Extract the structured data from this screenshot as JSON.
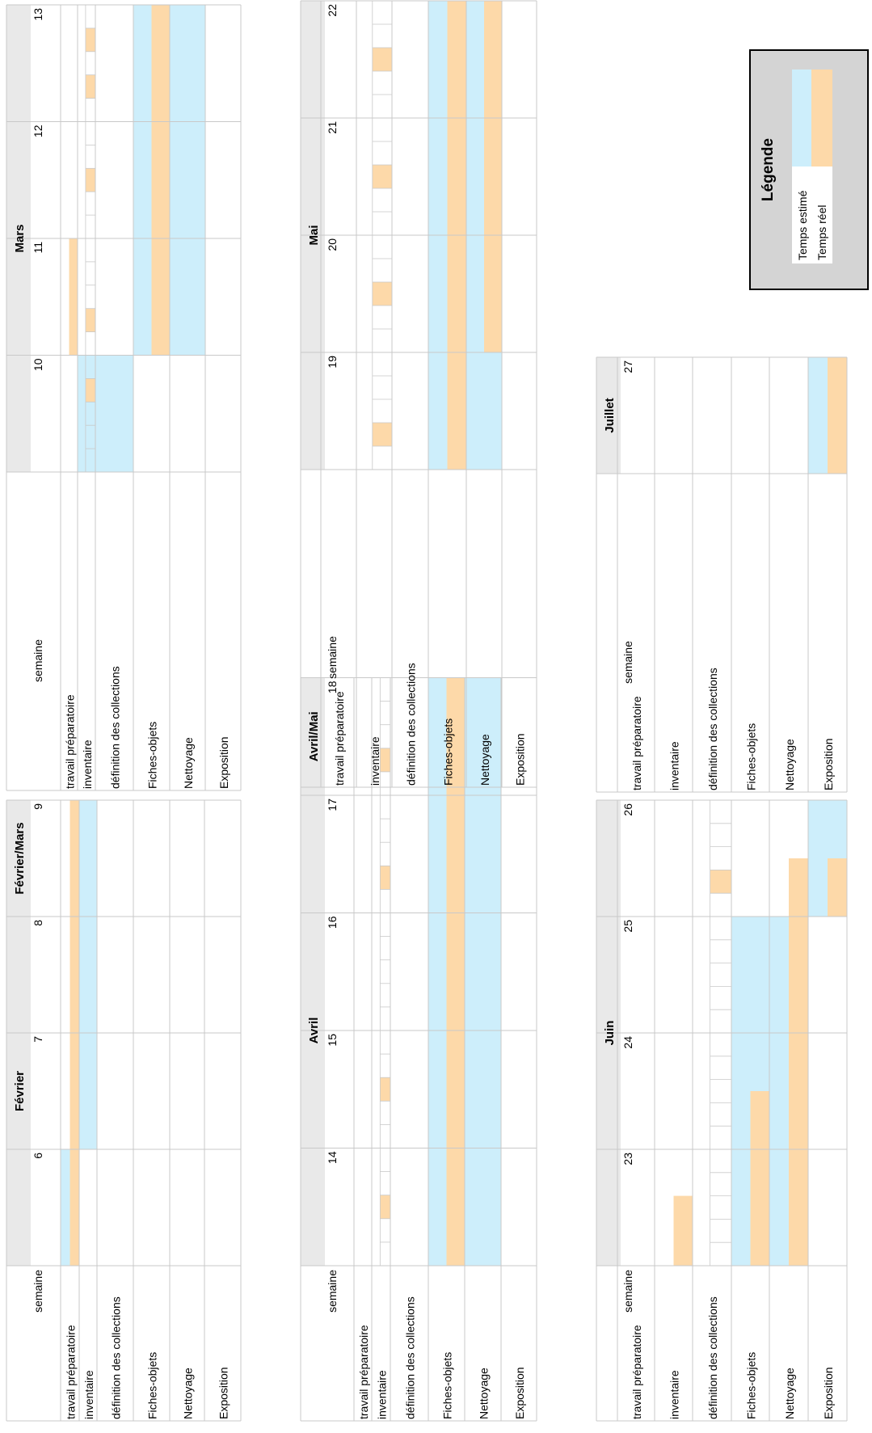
{
  "colors": {
    "estimated": "#cdeefb",
    "real": "#fdd9a9",
    "header_bg": "#e9e9e9",
    "legend_bg": "#d4d4d4",
    "grid": "#c9c9c9"
  },
  "legend": {
    "title": "Légende",
    "estimated_label": "Temps estimé",
    "real_label": "Temps réel"
  },
  "chart_data": [
    {
      "type": "gantt",
      "month_labels": [
        "Février",
        "Février/Mars"
      ],
      "row_header": "semaine",
      "rows": [
        "travail préparatoire",
        "inventaire",
        "définition des collections",
        "Fiches-objets",
        "Nettoyage",
        "Exposition"
      ],
      "weeks": [
        6,
        7,
        8,
        9
      ],
      "estimated": [
        {
          "row": "travail préparatoire",
          "start": 6,
          "end": 6
        },
        {
          "row": "inventaire",
          "start": 7,
          "end": 9
        }
      ],
      "real": [
        {
          "row": "travail préparatoire",
          "start": 6,
          "end": 9
        }
      ]
    },
    {
      "type": "gantt",
      "month_labels": [
        "Mars"
      ],
      "row_header": "semaine",
      "rows": [
        "travail préparatoire",
        "inventaire",
        "définition des collections",
        "Fiches-objets",
        "Nettoyage",
        "Exposition"
      ],
      "weeks": [
        10,
        11,
        12,
        13
      ],
      "estimated": [
        {
          "row": "inventaire",
          "start": 10,
          "end": 10
        },
        {
          "row": "définition des collections",
          "start": 10,
          "end": 10
        },
        {
          "row": "Fiches-objets",
          "start": 11,
          "end": 13
        },
        {
          "row": "Nettoyage",
          "start": 11,
          "end": 13
        }
      ],
      "real": [
        {
          "row": "travail préparatoire",
          "start": 11,
          "end": 11
        },
        {
          "row": "inventaire",
          "day_blocks": [
            [
              10,
              4
            ],
            [
              11,
              2
            ],
            [
              12,
              3
            ],
            [
              13,
              2
            ],
            [
              13,
              4
            ]
          ]
        },
        {
          "row": "Fiches-objets",
          "start": 11,
          "end": 13
        }
      ]
    },
    {
      "type": "gantt",
      "month_labels": [
        "Avril",
        "Avril/Mai"
      ],
      "row_header": "semaine",
      "rows": [
        "travail préparatoire",
        "inventaire",
        "définition des collections",
        "Fiches-objets",
        "Nettoyage",
        "Exposition"
      ],
      "weeks": [
        14,
        15,
        16,
        17,
        18
      ],
      "estimated": [
        {
          "row": "Fiches-objets",
          "start": 14,
          "end": 18
        },
        {
          "row": "Nettoyage",
          "start": 14,
          "end": 18
        }
      ],
      "real": [
        {
          "row": "inventaire",
          "day_blocks": [
            [
              14,
              3
            ],
            [
              15,
              3
            ],
            [
              17,
              2
            ],
            [
              18,
              2
            ]
          ]
        },
        {
          "row": "Fiches-objets",
          "start": 14,
          "end": 18
        }
      ]
    },
    {
      "type": "gantt",
      "month_labels": [
        "Mai"
      ],
      "row_header": "semaine",
      "rows": [
        "travail préparatoire",
        "inventaire",
        "définition des collections",
        "Fiches-objets",
        "Nettoyage",
        "Exposition"
      ],
      "weeks": [
        19,
        20,
        21,
        22
      ],
      "estimated": [
        {
          "row": "Fiches-objets",
          "start": 19,
          "end": 22
        },
        {
          "row": "Nettoyage",
          "start": 19,
          "end": 22
        }
      ],
      "real": [
        {
          "row": "inventaire",
          "day_blocks": [
            [
              19,
              2
            ],
            [
              20,
              3
            ],
            [
              21,
              3
            ],
            [
              22,
              3
            ]
          ]
        },
        {
          "row": "Fiches-objets",
          "start": 19,
          "end": 22
        },
        {
          "row": "Nettoyage",
          "start": 20,
          "end": 22
        }
      ]
    },
    {
      "type": "gantt",
      "month_labels": [
        "Juin"
      ],
      "row_header": "semaine",
      "rows": [
        "travail préparatoire",
        "inventaire",
        "définition des collections",
        "Fiches-objets",
        "Nettoyage",
        "Exposition"
      ],
      "weeks": [
        23,
        24,
        25,
        26
      ],
      "estimated": [
        {
          "row": "Fiches-objets",
          "start": 23,
          "end": 25
        },
        {
          "row": "Nettoyage",
          "start": 23,
          "end": 25
        },
        {
          "row": "Exposition",
          "start": 26,
          "end": 26
        }
      ],
      "real": [
        {
          "row": "inventaire",
          "start": 23,
          "end": 23,
          "fraction": 0.6
        },
        {
          "row": "définition des collections",
          "day_blocks": [
            [
              26,
              2
            ]
          ]
        },
        {
          "row": "Fiches-objets",
          "start": 23,
          "end": 24,
          "fraction_of_last": 0.5
        },
        {
          "row": "Nettoyage",
          "start": 23,
          "end": 26,
          "fraction_of_last": 0.5
        },
        {
          "row": "Exposition",
          "start": 26,
          "end": 26,
          "fraction": 0.5
        }
      ]
    },
    {
      "type": "gantt",
      "month_labels": [
        "Juillet"
      ],
      "row_header": "semaine",
      "rows": [
        "travail préparatoire",
        "inventaire",
        "définition des collections",
        "Fiches-objets",
        "Nettoyage",
        "Exposition"
      ],
      "weeks": [
        27
      ],
      "estimated": [
        {
          "row": "Exposition",
          "start": 27,
          "end": 27
        }
      ],
      "real": [
        {
          "row": "Exposition",
          "start": 27,
          "end": 27
        }
      ]
    }
  ]
}
